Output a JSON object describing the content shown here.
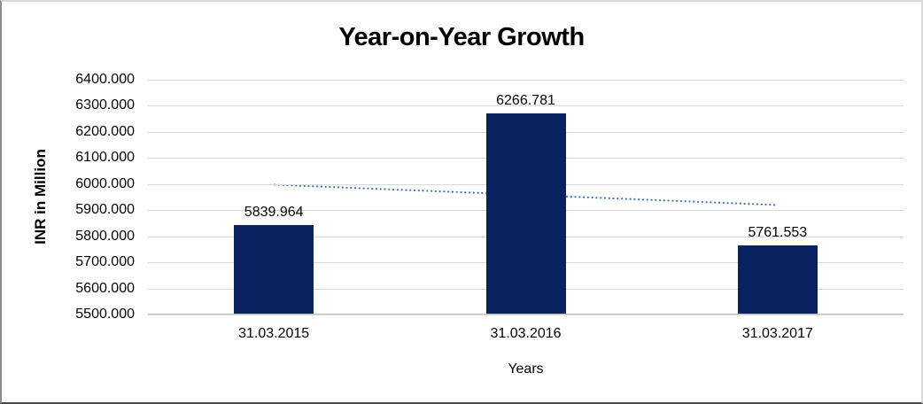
{
  "chart_data": {
    "type": "bar",
    "title": "Year-on-Year Growth",
    "xlabel": "Years",
    "ylabel": "INR in Million",
    "categories": [
      "31.03.2015",
      "31.03.2016",
      "31.03.2017"
    ],
    "values": [
      5839.964,
      6266.781,
      5761.553
    ],
    "data_labels": [
      "5839.964",
      "6266.781",
      "5761.553"
    ],
    "ylim": [
      5500,
      6400
    ],
    "ytick_step": 100,
    "ytick_labels": [
      "5500.000",
      "5600.000",
      "5700.000",
      "5800.000",
      "5900.000",
      "6000.000",
      "6100.000",
      "6200.000",
      "6300.000",
      "6400.000"
    ],
    "grid": "horizontal",
    "legend": "none",
    "colors": {
      "bar": "#092260",
      "gridline": "#d9d9d9",
      "axis_line": "#bfbfbf",
      "text": "#000000",
      "trendline": "#4472c4",
      "background": "#ffffff"
    },
    "trendline": {
      "type": "linear",
      "style": "dotted",
      "color": "#4472c4",
      "start_value": 5996,
      "end_value": 5918
    }
  }
}
